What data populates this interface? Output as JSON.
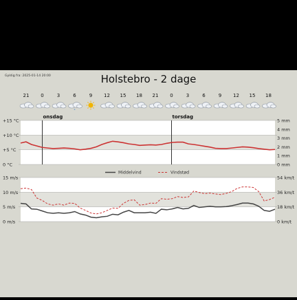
{
  "valid_from": "Gyldig fra: 2025-01-14 20:00",
  "title": "Holstebro - 2 dage",
  "hours": [
    "21",
    "0",
    "3",
    "6",
    "9",
    "12",
    "15",
    "18",
    "21",
    "0",
    "3",
    "6",
    "9",
    "12",
    "15",
    "18"
  ],
  "icons": [
    "cloud-icon",
    "cloud-icon",
    "cloud-icon",
    "cloud-snow-icon",
    "sun-icon",
    "cloud-icon",
    "cloud-icon",
    "cloud-icon",
    "cloud-icon",
    "cloud-icon",
    "cloud-icon",
    "cloud-icon",
    "cloud-icon",
    "cloud-icon",
    "cloud-icon",
    "cloud-icon"
  ],
  "day_labels": [
    "onsdag",
    "torsdag"
  ],
  "temp_axis": {
    "left": [
      "+15 °C",
      "+10 °C",
      "+5 °C",
      "0 °C"
    ],
    "right": [
      "5 mm",
      "4 mm",
      "3 mm",
      "2 mm",
      "1 mm",
      "0 mm"
    ]
  },
  "wind_axis": {
    "left": [
      "15 m/s",
      "10 m/s",
      "5 m/s",
      "0 m/s"
    ],
    "right": [
      "54 km/t",
      "36 km/t",
      "18 km/t",
      "0 km/t"
    ]
  },
  "legend": {
    "mean": "Middelvind",
    "gust": "Vindstød"
  },
  "colors": {
    "temp": "#cc3333",
    "mean": "#444444",
    "gust": "#cc3333",
    "band": "#e2e2dc",
    "bg": "#ffffff",
    "frame": "#d8d8d0"
  },
  "chart_data": [
    {
      "type": "line",
      "ylabel_left": "°C",
      "ylabel_right": "mm",
      "ylim": [
        0,
        15
      ],
      "y2lim": [
        0,
        5
      ],
      "series": [
        {
          "values": [
            7.3,
            7.7,
            6.8,
            6.3,
            5.8,
            5.6,
            5.4,
            5.5,
            5.6,
            5.5,
            5.3,
            5.0,
            5.2,
            5.5,
            6.0,
            6.8,
            7.4,
            7.9,
            7.7,
            7.4,
            7.0,
            6.8,
            6.5,
            6.6,
            6.7,
            6.6,
            6.8,
            7.2,
            7.5,
            7.6,
            7.6,
            7.0,
            6.8,
            6.5,
            6.2,
            5.9,
            5.5,
            5.4,
            5.4,
            5.6,
            5.8,
            6.0,
            5.9,
            5.7,
            5.4,
            5.2,
            5.0,
            5.1
          ]
        }
      ]
    },
    {
      "type": "line",
      "ylabel_left": "m/s",
      "ylabel_right": "km/t",
      "ylim": [
        0,
        15
      ],
      "series": [
        {
          "name": "Middelvind",
          "values": [
            6.2,
            6.0,
            4.3,
            4.2,
            3.6,
            3.0,
            2.8,
            3.0,
            2.8,
            3.0,
            3.4,
            2.6,
            2.2,
            1.5,
            1.3,
            1.6,
            1.8,
            2.5,
            2.3,
            3.2,
            3.8,
            3.0,
            3.0,
            3.0,
            3.2,
            2.8,
            4.2,
            4.0,
            4.3,
            4.8,
            4.3,
            4.5,
            5.5,
            4.8,
            5.0,
            5.2,
            5.0,
            5.0,
            5.1,
            5.4,
            5.8,
            6.3,
            6.3,
            6.0,
            5.2,
            3.8,
            3.5,
            4.2
          ]
        },
        {
          "name": "Vindstød",
          "values": [
            11.2,
            11.4,
            10.9,
            8.0,
            7.2,
            6.0,
            5.6,
            6.0,
            5.6,
            6.3,
            6.2,
            4.6,
            3.8,
            2.9,
            2.6,
            3.0,
            3.8,
            4.6,
            4.5,
            6.2,
            7.2,
            7.4,
            5.6,
            5.8,
            6.3,
            6.2,
            7.8,
            7.6,
            7.8,
            8.5,
            8.2,
            8.4,
            10.4,
            9.9,
            9.5,
            9.7,
            9.4,
            9.2,
            9.6,
            10.2,
            11.3,
            11.8,
            11.8,
            11.6,
            10.2,
            7.0,
            7.5,
            8.3
          ]
        }
      ]
    }
  ]
}
